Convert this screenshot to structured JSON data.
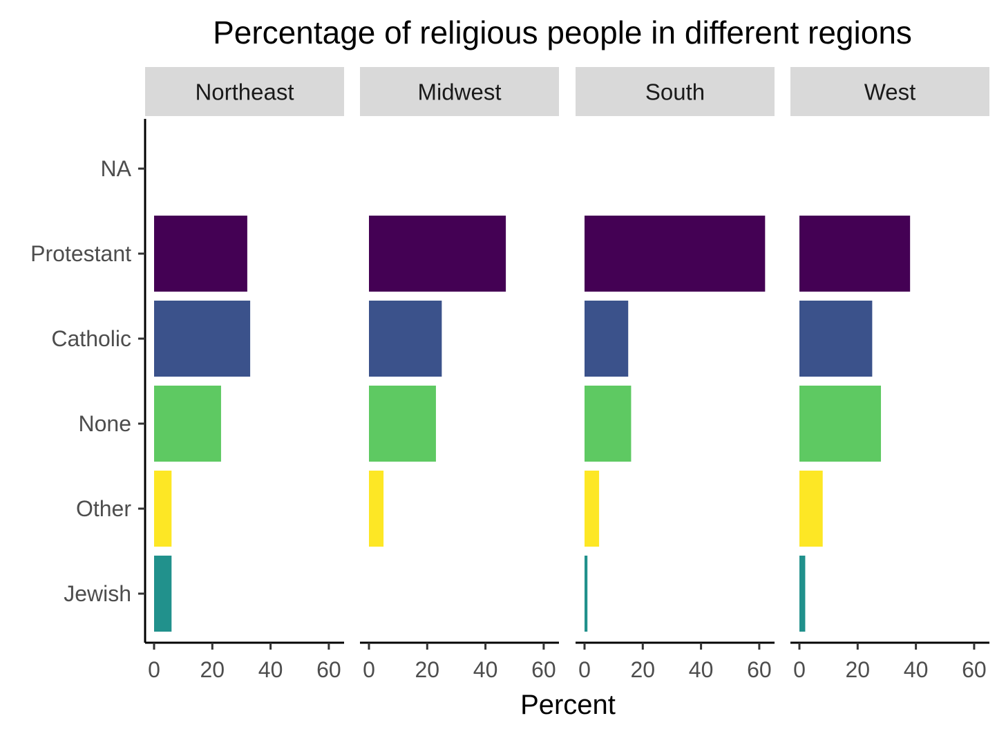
{
  "chart_data": {
    "type": "bar",
    "orientation": "horizontal",
    "title": "Percentage of religious people in different regions",
    "xlabel": "Percent",
    "ylabel": "",
    "xlim": [
      0,
      65
    ],
    "x_ticks": [
      0,
      20,
      40,
      60
    ],
    "grid": false,
    "legend": "none",
    "categories": [
      "NA",
      "Protestant",
      "Catholic",
      "None",
      "Other",
      "Jewish"
    ],
    "category_colors": {
      "NA": "#7f7f7f",
      "Protestant": "#440154",
      "Catholic": "#3b528b",
      "None": "#5ec962",
      "Other": "#fde725",
      "Jewish": "#21918c"
    },
    "strip_color": "#d9d9d9",
    "panels": [
      {
        "name": "Northeast",
        "values": {
          "NA": 0,
          "Protestant": 32,
          "Catholic": 33,
          "None": 23,
          "Other": 6,
          "Jewish": 6
        }
      },
      {
        "name": "Midwest",
        "values": {
          "NA": 0,
          "Protestant": 47,
          "Catholic": 25,
          "None": 23,
          "Other": 5,
          "Jewish": 0
        }
      },
      {
        "name": "South",
        "values": {
          "NA": 0,
          "Protestant": 62,
          "Catholic": 15,
          "None": 16,
          "Other": 5,
          "Jewish": 1
        }
      },
      {
        "name": "West",
        "values": {
          "NA": 0,
          "Protestant": 38,
          "Catholic": 25,
          "None": 28,
          "Other": 8,
          "Jewish": 2
        }
      }
    ]
  }
}
